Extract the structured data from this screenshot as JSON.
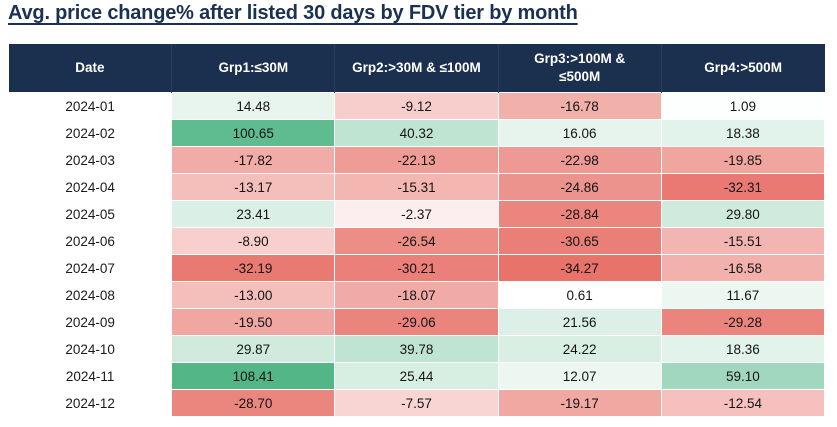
{
  "title": "Avg. price change% after listed 30 days by FDV tier by month",
  "colors": {
    "title_color": "#1B3153",
    "header_bg": "#1B2F4E",
    "header_text": "#FFFFFF",
    "positive_max": "#53B687",
    "negative_min": "#E8736B",
    "neutral": "#FFFFFF"
  },
  "chart_data": {
    "type": "heatmap",
    "title": "Avg. price change% after listed 30 days by FDV tier by month",
    "columns": [
      "Date",
      "Grp1:≤30M",
      "Grp2:>30M & ≤100M",
      "Grp3:>100M & ≤500M",
      "Grp4:>500M"
    ],
    "rows": [
      {
        "date": "2024-01",
        "values": [
          14.48,
          -9.12,
          -16.78,
          1.09
        ]
      },
      {
        "date": "2024-02",
        "values": [
          100.65,
          40.32,
          16.06,
          18.38
        ]
      },
      {
        "date": "2024-03",
        "values": [
          -17.82,
          -22.13,
          -22.98,
          -19.85
        ]
      },
      {
        "date": "2024-04",
        "values": [
          -13.17,
          -15.31,
          -24.86,
          -32.31
        ]
      },
      {
        "date": "2024-05",
        "values": [
          23.41,
          -2.37,
          -28.84,
          29.8
        ]
      },
      {
        "date": "2024-06",
        "values": [
          -8.9,
          -26.54,
          -30.65,
          -15.51
        ]
      },
      {
        "date": "2024-07",
        "values": [
          -32.19,
          -30.21,
          -34.27,
          -16.58
        ]
      },
      {
        "date": "2024-08",
        "values": [
          -13.0,
          -18.07,
          0.61,
          11.67
        ]
      },
      {
        "date": "2024-09",
        "values": [
          -19.5,
          -29.06,
          21.56,
          -29.28
        ]
      },
      {
        "date": "2024-10",
        "values": [
          29.87,
          39.78,
          24.22,
          18.36
        ]
      },
      {
        "date": "2024-11",
        "values": [
          108.41,
          25.44,
          12.07,
          59.1
        ]
      },
      {
        "date": "2024-12",
        "values": [
          -28.7,
          -7.57,
          -19.17,
          -12.54
        ]
      }
    ],
    "scale": {
      "min": -34.27,
      "mid": 0,
      "max": 108.41
    },
    "value_format": "two_decimals",
    "legend_position": "none",
    "grid": false
  }
}
